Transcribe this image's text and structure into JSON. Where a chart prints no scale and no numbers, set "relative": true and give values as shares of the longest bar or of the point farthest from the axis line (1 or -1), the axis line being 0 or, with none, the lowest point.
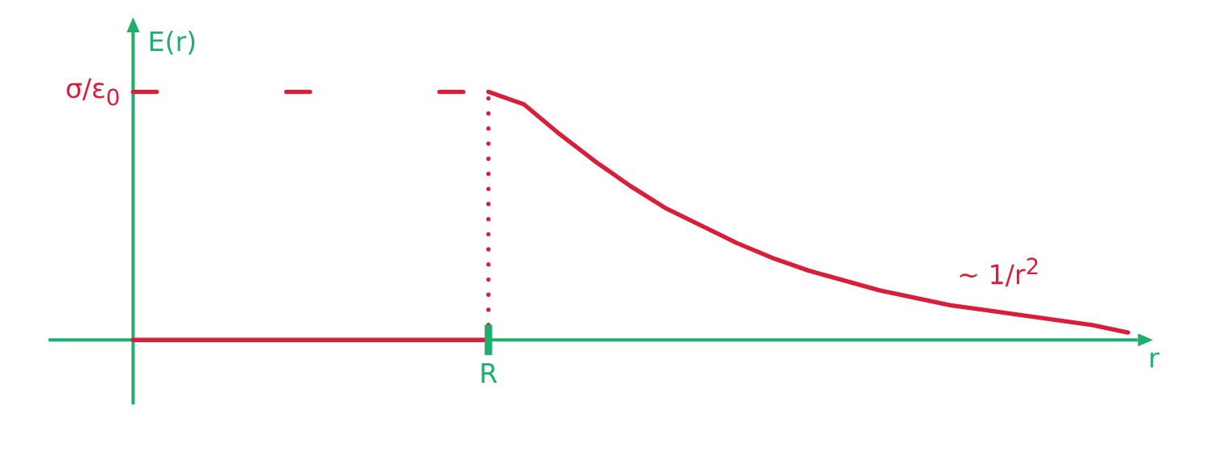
{
  "chart_data": {
    "type": "line",
    "xlabel": "r",
    "ylabel": "E(r)",
    "relative": true,
    "categories": [
      null,
      null,
      null,
      null,
      null,
      null,
      null,
      null,
      null,
      null,
      null,
      null,
      null,
      null,
      null,
      null,
      null,
      null,
      null,
      null,
      null,
      null,
      null,
      null,
      null,
      null,
      null,
      null,
      null
    ],
    "series": [
      {
        "color": "#d81e3a",
        "values": [
          0,
          0,
          0,
          0,
          0,
          0,
          0,
          0,
          0,
          0,
          0,
          null,
          null,
          null,
          null,
          null,
          null,
          null,
          null,
          null,
          null,
          null,
          null,
          null,
          null,
          null,
          null,
          null,
          null
        ]
      },
      {
        "color": "#d81e3a",
        "values": [
          null,
          null,
          null,
          null,
          null,
          null,
          null,
          null,
          null,
          null,
          1,
          0.95,
          0.83,
          0.72,
          0.62,
          0.53,
          0.46,
          0.39,
          0.33,
          0.28,
          0.24,
          0.2,
          0.17,
          0.14,
          0.12,
          0.1,
          0.08,
          0.06,
          0.03
        ]
      }
    ],
    "annotations": [
      "R",
      "σ/ε$_{0}$",
      "~ 1/r$^{2}$"
    ],
    "line_style": "solid"
  }
}
